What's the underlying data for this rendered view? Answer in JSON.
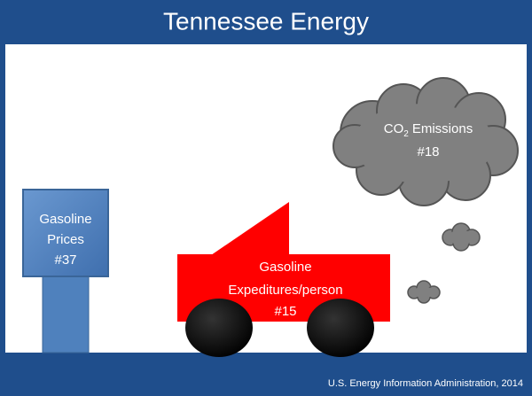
{
  "header": {
    "title": "Tennessee Energy"
  },
  "pump": {
    "lines": [
      "Gasoline",
      "Prices",
      "#37"
    ]
  },
  "car": {
    "lines": [
      "Gasoline",
      "Expeditures/person",
      "#15"
    ]
  },
  "cloud": {
    "label_main": "CO",
    "label_sub": "2",
    "label_rest": "Emissions",
    "rank": "#18"
  },
  "footer": {
    "source": "U.S. Energy Information Administration, 2014"
  }
}
